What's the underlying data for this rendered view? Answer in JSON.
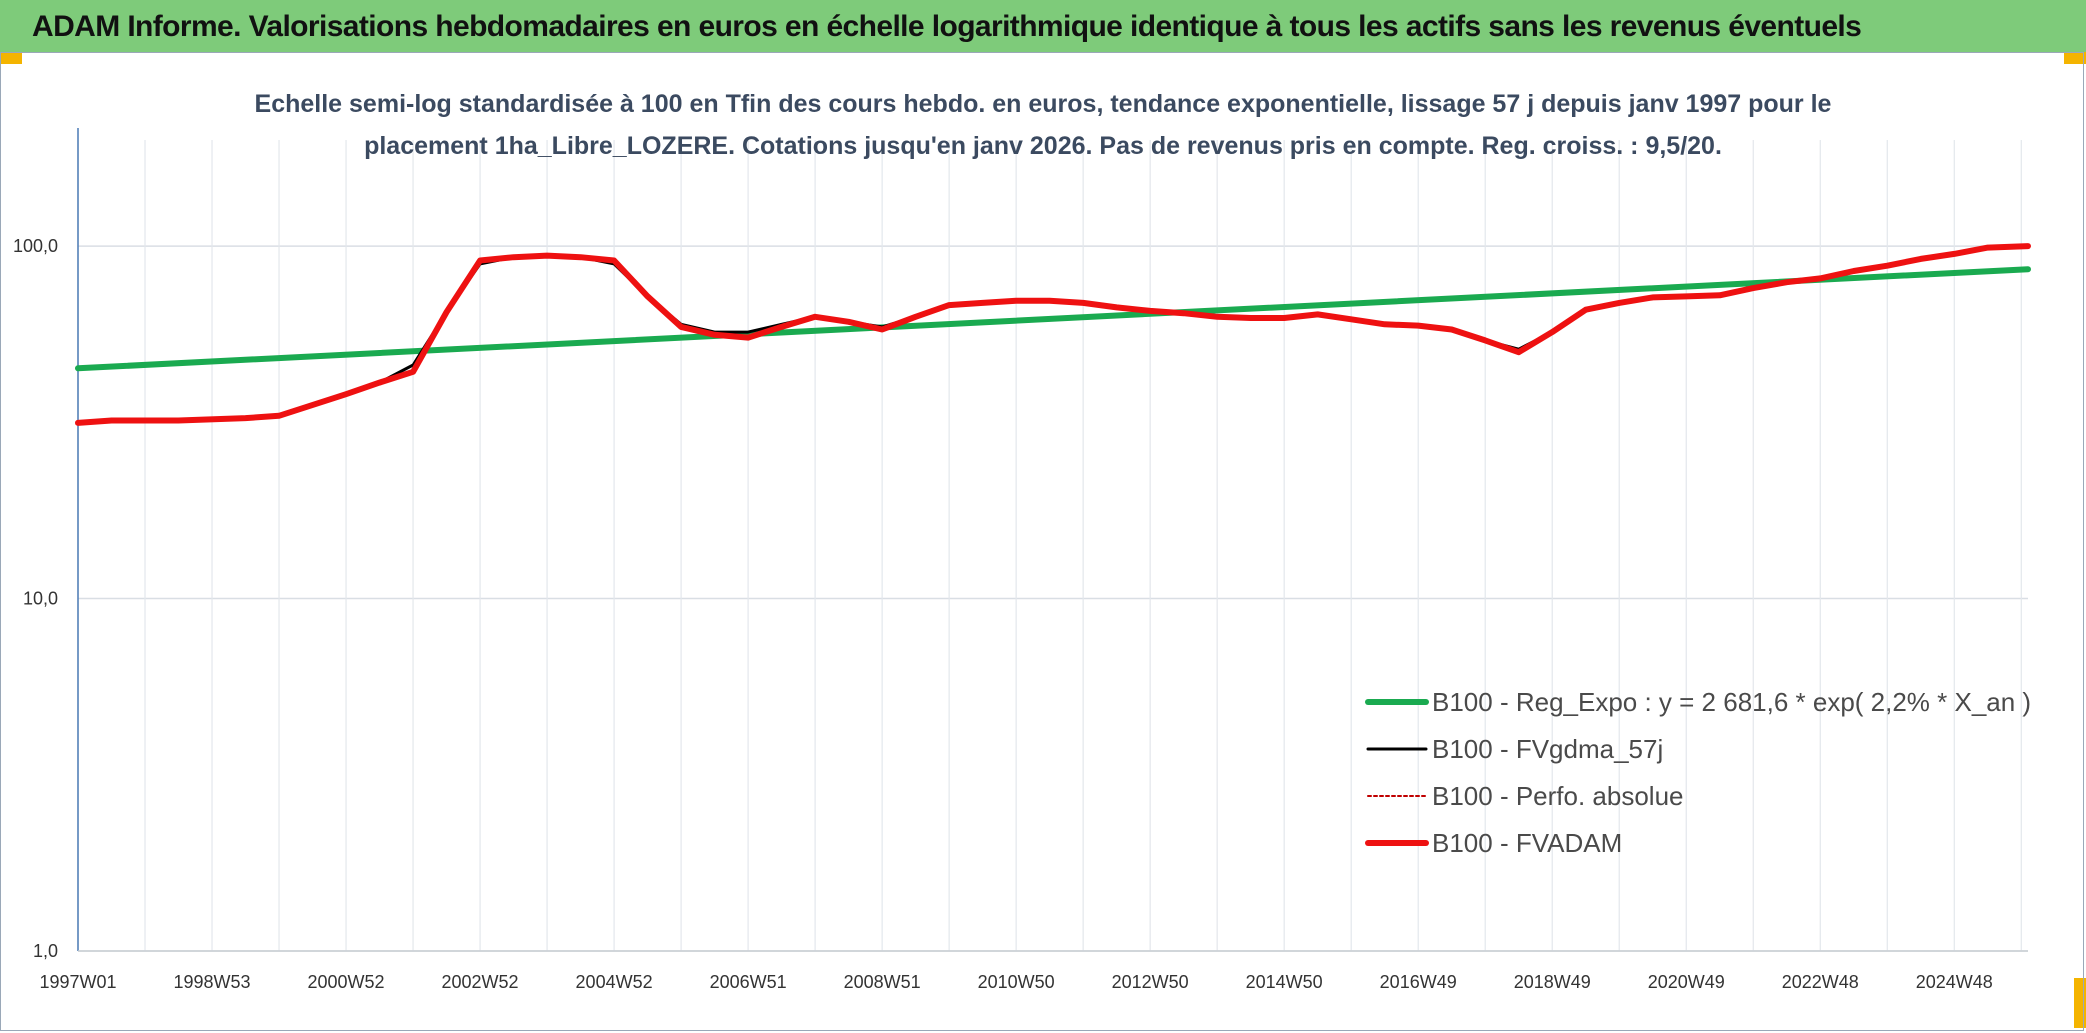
{
  "banner": {
    "title": "ADAM Informe. Valorisations hebdomadaires en euros en échelle logarithmique identique à tous les actifs sans les revenus éventuels",
    "background": "#7ecb7a"
  },
  "chart_data": {
    "type": "line",
    "yscale": "log",
    "title_lines": [
      "Echelle semi-log standardisée à 100 en Tfin des cours hebdo. en euros, tendance exponentielle, lissage 57 j depuis janv 1997 pour le",
      "placement 1ha_Libre_LOZERE. Cotations jusqu'en janv 2026. Pas de revenus pris en compte. Reg. croiss. : 9,5/20."
    ],
    "ylim": [
      1,
      200
    ],
    "y_ticks": [
      {
        "value": 1,
        "label": "1,0"
      },
      {
        "value": 10,
        "label": "10,0"
      },
      {
        "value": 100,
        "label": "100,0"
      }
    ],
    "xlim": [
      1997.0,
      2026.1
    ],
    "x_ticks": [
      {
        "value": 1997.0,
        "label": "1997W01"
      },
      {
        "value": 1999.0,
        "label": "1998W53"
      },
      {
        "value": 2001.0,
        "label": "2000W52"
      },
      {
        "value": 2003.0,
        "label": "2002W52"
      },
      {
        "value": 2005.0,
        "label": "2004W52"
      },
      {
        "value": 2007.0,
        "label": "2006W51"
      },
      {
        "value": 2009.0,
        "label": "2008W51"
      },
      {
        "value": 2011.0,
        "label": "2010W50"
      },
      {
        "value": 2013.0,
        "label": "2012W50"
      },
      {
        "value": 2015.0,
        "label": "2014W50"
      },
      {
        "value": 2017.0,
        "label": "2016W49"
      },
      {
        "value": 2019.0,
        "label": "2018W49"
      },
      {
        "value": 2021.0,
        "label": "2020W49"
      },
      {
        "value": 2023.0,
        "label": "2022W48"
      },
      {
        "value": 2025.0,
        "label": "2024W48"
      }
    ],
    "gridlines": true,
    "legend_position": "bottom-right",
    "series": [
      {
        "name": "B100 - Reg_Expo : y = 2 681,6 * exp( 2,2% *  X_an )",
        "color": "#1aaa50",
        "style": "solid-thick",
        "x": [
          1997.0,
          2026.1
        ],
        "y": [
          45.0,
          86.0
        ]
      },
      {
        "name": "B100 - FVgdma_57j",
        "color": "#000000",
        "style": "solid-thin",
        "x": [
          1997.0,
          1997.5,
          1998.5,
          1999.5,
          2000.0,
          2001.0,
          2001.5,
          2002.0,
          2002.5,
          2003.0,
          2003.5,
          2004.0,
          2004.5,
          2005.0,
          2005.5,
          2006.0,
          2006.5,
          2007.0,
          2007.5,
          2008.0,
          2008.5,
          2009.0,
          2009.5,
          2010.0,
          2010.5,
          2011.0,
          2011.5,
          2012.0,
          2012.5,
          2013.0,
          2013.5,
          2014.0,
          2014.5,
          2015.0,
          2015.5,
          2016.0,
          2016.5,
          2017.0,
          2017.5,
          2018.0,
          2018.5,
          2019.0,
          2019.5,
          2020.0,
          2020.5,
          2021.0,
          2021.5,
          2022.0,
          2022.5,
          2023.0,
          2023.5,
          2024.0,
          2024.5,
          2025.0,
          2025.5,
          2026.1
        ],
        "y": [
          31.5,
          32.0,
          32.0,
          32.5,
          33.0,
          38.0,
          41.0,
          46.0,
          65.0,
          89.0,
          93.0,
          94.0,
          93.0,
          89.0,
          72.0,
          60.0,
          57.0,
          57.0,
          60.0,
          63.0,
          61.0,
          59.0,
          63.0,
          68.0,
          69.0,
          70.0,
          70.0,
          69.0,
          67.0,
          65.5,
          64.5,
          63.0,
          62.5,
          62.5,
          64.0,
          62.0,
          60.0,
          59.5,
          58.0,
          54.0,
          51.0,
          57.0,
          66.0,
          69.0,
          71.5,
          72.0,
          72.5,
          76.0,
          79.0,
          81.0,
          85.0,
          88.0,
          92.0,
          95.0,
          99.0,
          100.0
        ]
      },
      {
        "name": "B100 - Perfo. absolue",
        "color": "#c00000",
        "style": "dotted",
        "x": [
          1997.0,
          1997.5,
          1998.5,
          1999.5,
          2000.0,
          2001.0,
          2001.5,
          2002.0,
          2002.5,
          2003.0,
          2003.5,
          2004.0,
          2004.5,
          2005.0,
          2005.5,
          2006.0,
          2006.5,
          2007.0,
          2007.5,
          2008.0,
          2008.5,
          2009.0,
          2009.5,
          2010.0,
          2010.5,
          2011.0,
          2011.5,
          2012.0,
          2012.5,
          2013.0,
          2013.5,
          2014.0,
          2014.5,
          2015.0,
          2015.5,
          2016.0,
          2016.5,
          2017.0,
          2017.5,
          2018.0,
          2018.5,
          2019.0,
          2019.5,
          2020.0,
          2020.5,
          2021.0,
          2021.5,
          2022.0,
          2022.5,
          2023.0,
          2023.5,
          2024.0,
          2024.5,
          2025.0,
          2025.5,
          2026.1
        ],
        "y": [
          31.5,
          32.0,
          32.0,
          32.5,
          33.0,
          38.0,
          41.0,
          44.0,
          65.0,
          91.0,
          93.0,
          94.0,
          93.0,
          91.0,
          72.0,
          59.0,
          56.0,
          55.0,
          59.0,
          63.0,
          61.0,
          58.0,
          63.0,
          68.0,
          69.0,
          70.0,
          70.0,
          69.0,
          67.0,
          65.5,
          64.5,
          63.0,
          62.5,
          62.5,
          64.0,
          62.0,
          60.0,
          59.5,
          58.0,
          54.0,
          50.0,
          57.0,
          66.0,
          69.0,
          71.5,
          72.0,
          72.5,
          76.0,
          79.0,
          81.0,
          85.0,
          88.0,
          92.0,
          95.0,
          99.0,
          100.0
        ]
      },
      {
        "name": "B100 - FVADAM",
        "color": "#ee1111",
        "style": "solid-thick",
        "x": [
          1997.0,
          1997.5,
          1998.5,
          1999.5,
          2000.0,
          2001.0,
          2001.5,
          2002.0,
          2002.5,
          2003.0,
          2003.5,
          2004.0,
          2004.5,
          2005.0,
          2005.5,
          2006.0,
          2006.5,
          2007.0,
          2007.5,
          2008.0,
          2008.5,
          2009.0,
          2009.5,
          2010.0,
          2010.5,
          2011.0,
          2011.5,
          2012.0,
          2012.5,
          2013.0,
          2013.5,
          2014.0,
          2014.5,
          2015.0,
          2015.5,
          2016.0,
          2016.5,
          2017.0,
          2017.5,
          2018.0,
          2018.5,
          2019.0,
          2019.5,
          2020.0,
          2020.5,
          2021.0,
          2021.5,
          2022.0,
          2022.5,
          2023.0,
          2023.5,
          2024.0,
          2024.5,
          2025.0,
          2025.5,
          2026.1
        ],
        "y": [
          31.5,
          32.0,
          32.0,
          32.5,
          33.0,
          38.0,
          41.0,
          44.0,
          65.0,
          91.0,
          93.0,
          94.0,
          93.0,
          91.0,
          72.0,
          59.0,
          56.0,
          55.0,
          59.0,
          63.0,
          61.0,
          58.0,
          63.0,
          68.0,
          69.0,
          70.0,
          70.0,
          69.0,
          67.0,
          65.5,
          64.5,
          63.0,
          62.5,
          62.5,
          64.0,
          62.0,
          60.0,
          59.5,
          58.0,
          54.0,
          50.0,
          57.0,
          66.0,
          69.0,
          71.5,
          72.0,
          72.5,
          76.0,
          79.0,
          81.0,
          85.0,
          88.0,
          92.0,
          95.0,
          99.0,
          100.0
        ]
      }
    ]
  }
}
